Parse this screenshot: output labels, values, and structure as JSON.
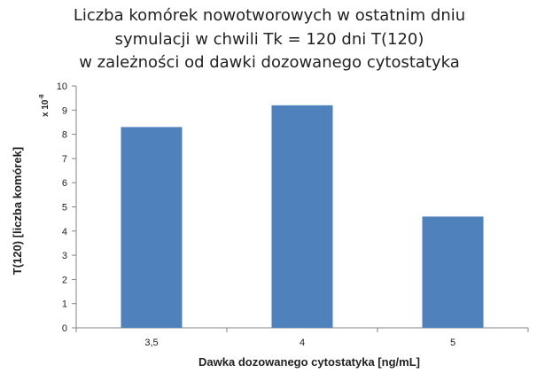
{
  "chart_data": {
    "type": "bar",
    "title_lines": [
      "Liczba komórek nowotworowych  w ostatnim dniu",
      "symulacji w chwili Tk = 120 dni T(120)",
      "w zależności  od dawki dozowanego cytostatyka"
    ],
    "xlabel": "Dawka dozowanego cytostatyka [ng/mL]",
    "ylabel": "T(120) [liczba komórek]",
    "y_multiplier": "x 10",
    "y_multiplier_exp": "-8",
    "categories": [
      "3,5",
      "4",
      "5"
    ],
    "values": [
      8.3,
      9.2,
      4.6
    ],
    "ylim": [
      0,
      10
    ],
    "yticks": [
      "0",
      "1",
      "2",
      "3",
      "4",
      "5",
      "6",
      "7",
      "8",
      "9",
      "10"
    ],
    "bar_color": "#4f81bd",
    "grid": false,
    "legend": "none"
  }
}
